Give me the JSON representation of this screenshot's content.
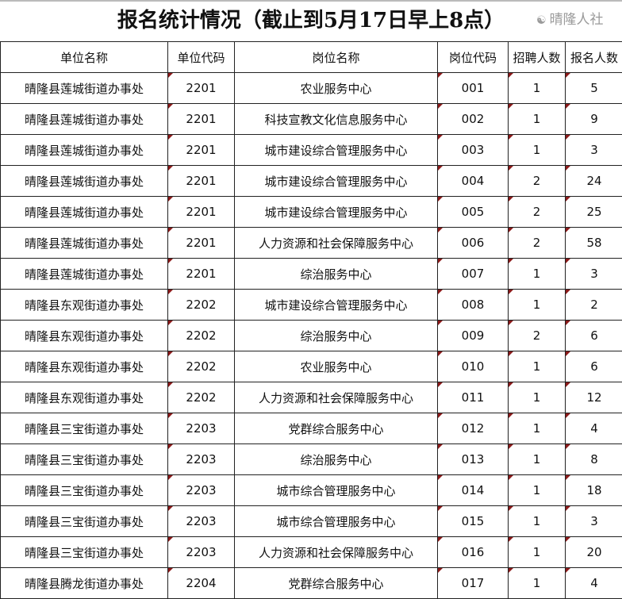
{
  "title": "报名统计情况（截止到5月17日早上8点）",
  "columns": [
    "单位名称",
    "单位代码",
    "岗位名称",
    "岗位代码",
    "招聘人数",
    "报名人数"
  ],
  "rows": [
    [
      "晴隆县莲城街道办事处",
      "2201",
      "农业服务中心",
      "001",
      "1",
      "5"
    ],
    [
      "晴隆县莲城街道办事处",
      "2201",
      "科技宣教文化信息服务中心",
      "002",
      "1",
      "9"
    ],
    [
      "晴隆县莲城街道办事处",
      "2201",
      "城市建设综合管理服务中心",
      "003",
      "1",
      "3"
    ],
    [
      "晴隆县莲城街道办事处",
      "2201",
      "城市建设综合管理服务中心",
      "004",
      "2",
      "24"
    ],
    [
      "晴隆县莲城街道办事处",
      "2201",
      "城市建设综合管理服务中心",
      "005",
      "2",
      "25"
    ],
    [
      "晴隆县莲城街道办事处",
      "2201",
      "人力资源和社会保障服务中心",
      "006",
      "2",
      "58"
    ],
    [
      "晴隆县莲城街道办事处",
      "2201",
      "综治服务中心",
      "007",
      "1",
      "3"
    ],
    [
      "晴隆县东观街道办事处",
      "2202",
      "城市建设综合管理服务中心",
      "008",
      "1",
      "2"
    ],
    [
      "晴隆县东观街道办事处",
      "2202",
      "综治服务中心",
      "009",
      "2",
      "6"
    ],
    [
      "晴隆县东观街道办事处",
      "2202",
      "农业服务中心",
      "010",
      "1",
      "6"
    ],
    [
      "晴隆县东观街道办事处",
      "2202",
      "人力资源和社会保障服务中心",
      "011",
      "1",
      "12"
    ],
    [
      "晴隆县三宝街道办事处",
      "2203",
      "党群综合服务中心",
      "012",
      "1",
      "4"
    ],
    [
      "晴隆县三宝街道办事处",
      "2203",
      "综治服务中心",
      "013",
      "1",
      "8"
    ],
    [
      "晴隆县三宝街道办事处",
      "2203",
      "城市综合管理服务中心",
      "014",
      "1",
      "18"
    ],
    [
      "晴隆县三宝街道办事处",
      "2203",
      "城市综合管理服务中心",
      "015",
      "1",
      "3"
    ],
    [
      "晴隆县三宝街道办事处",
      "2203",
      "人力资源和社会保障服务中心",
      "016",
      "1",
      "20"
    ],
    [
      "晴隆县腾龙街道办事处",
      "2204",
      "党群综合服务中心",
      "017",
      "1",
      "4"
    ]
  ],
  "watermark": "晴隆人社",
  "colors": {
    "comment_marker": "#8b1a1a"
  }
}
